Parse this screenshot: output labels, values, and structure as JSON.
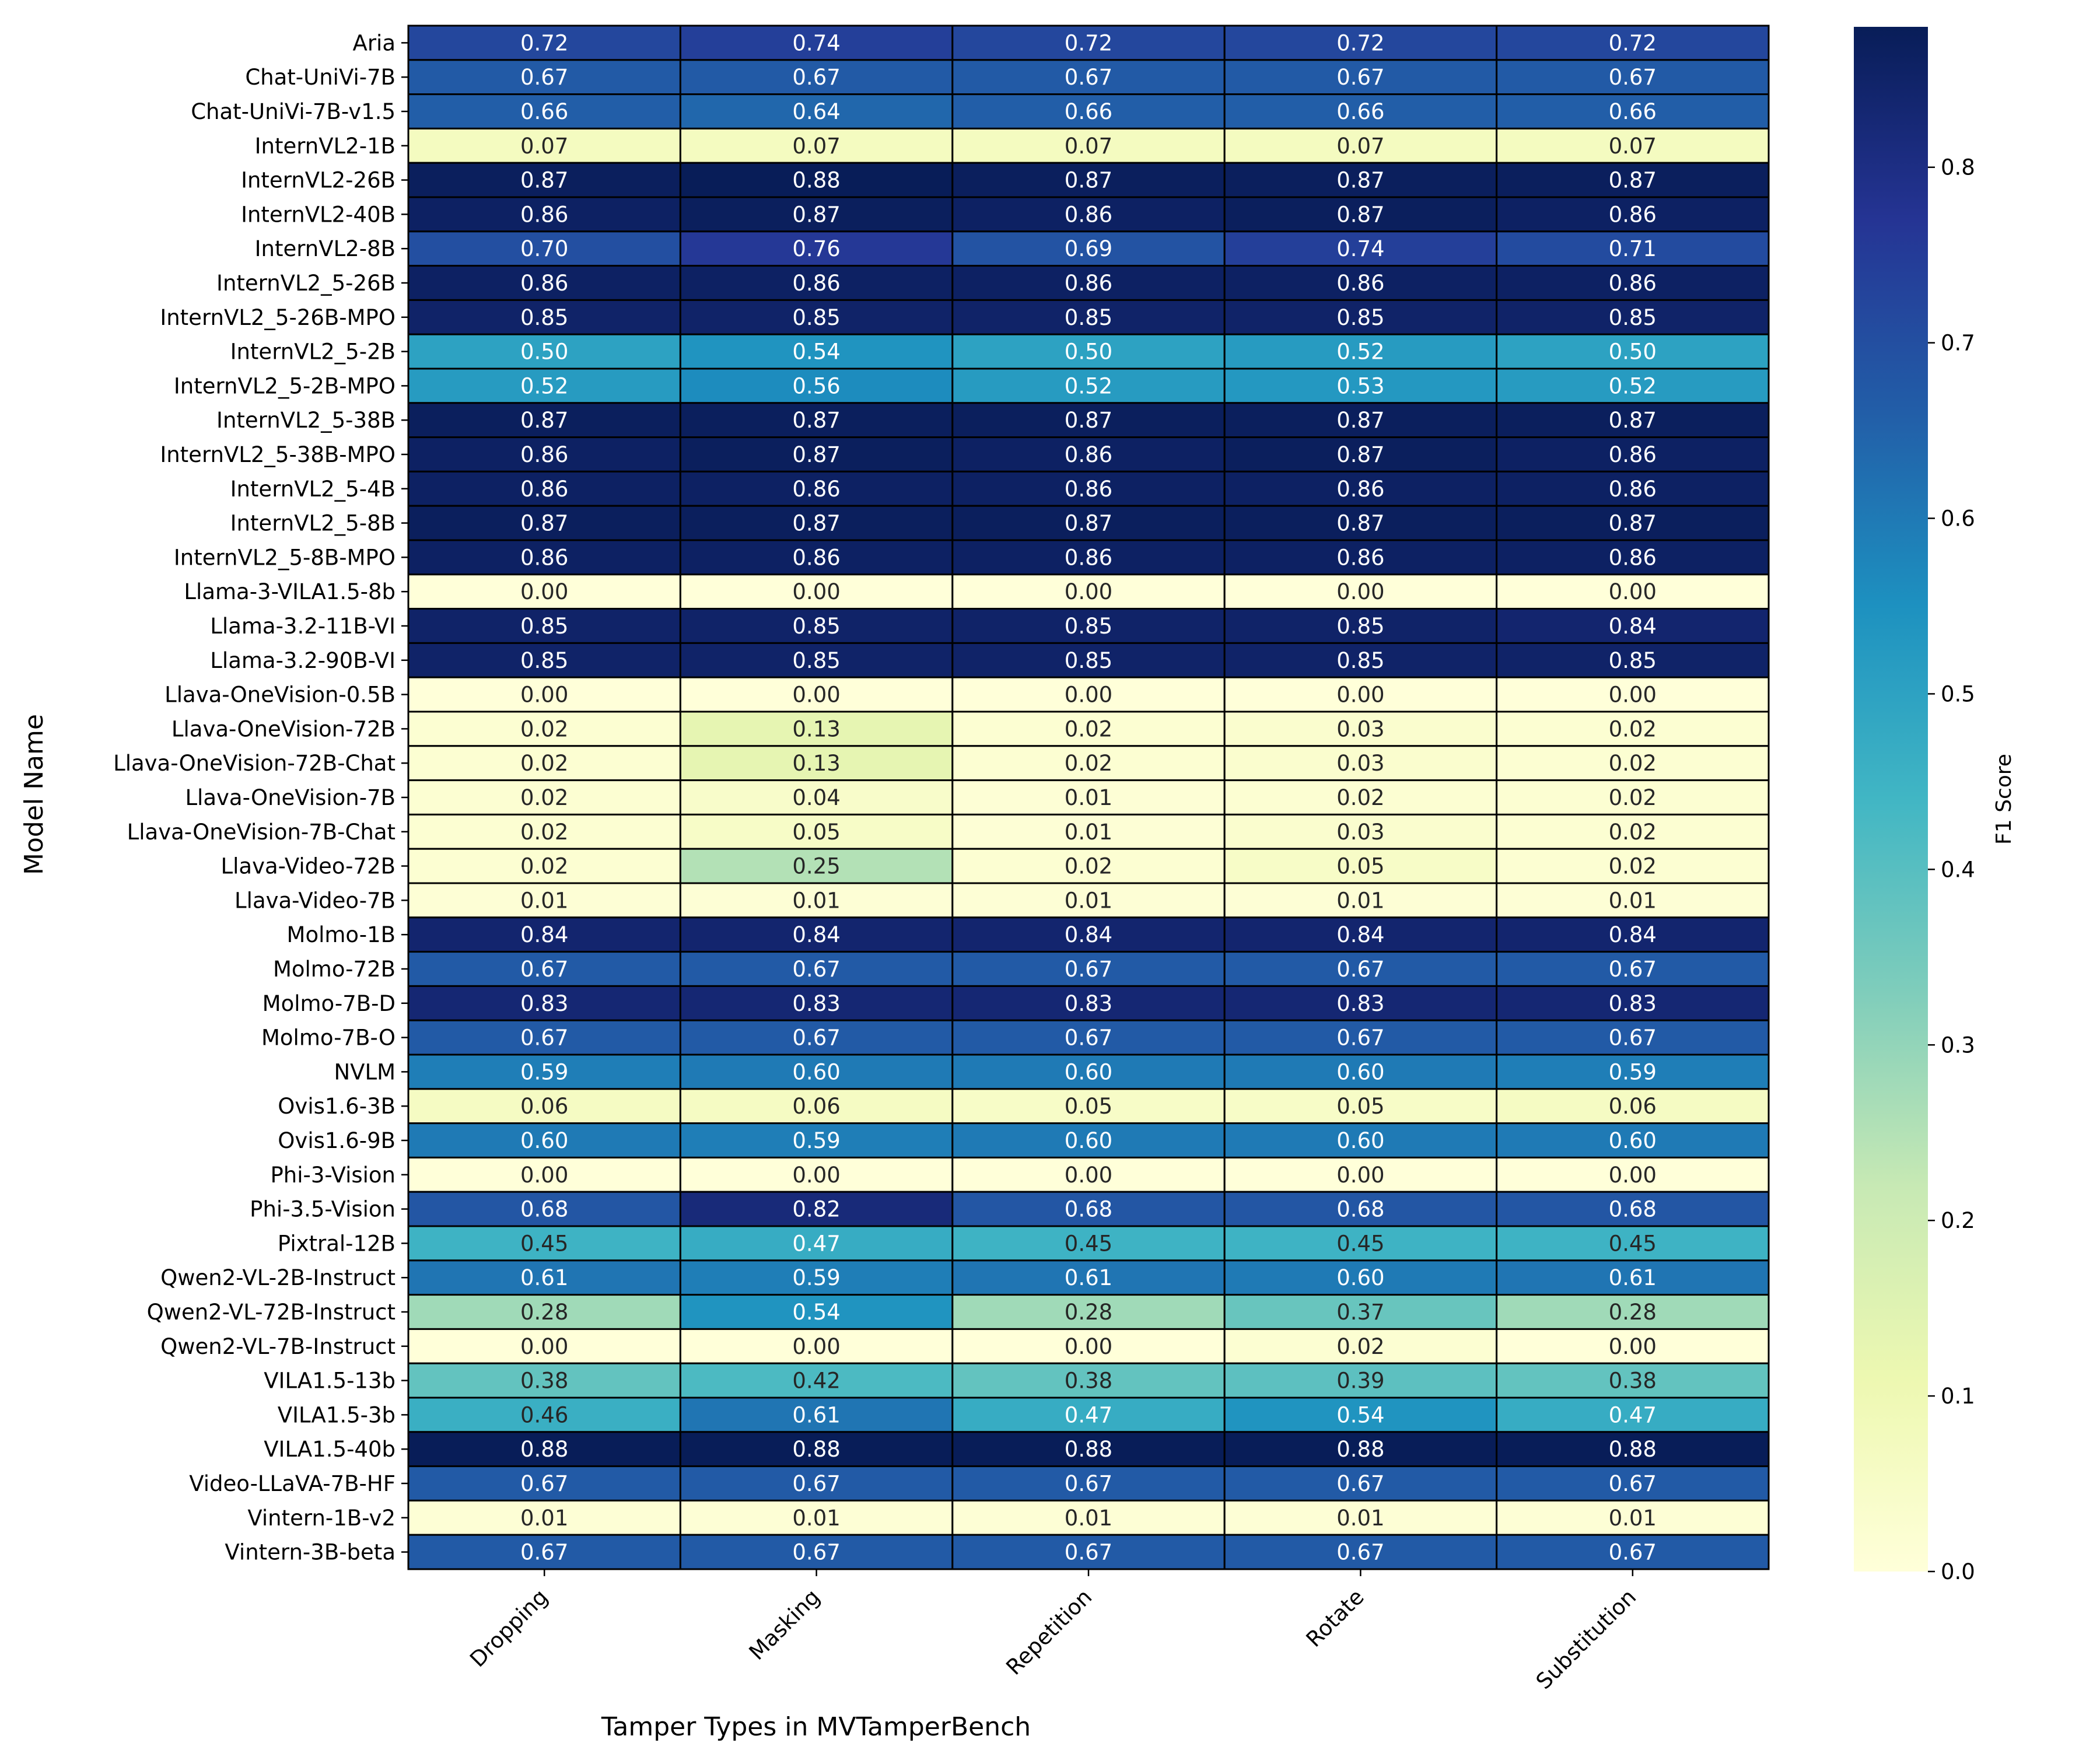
{
  "chart_data": {
    "type": "heatmap",
    "xlabel": "Tamper Types in MVTamperBench",
    "ylabel": "Model Name",
    "colorbar_label": "F1 Score",
    "colorbar_ticks": [
      0.0,
      0.1,
      0.2,
      0.3,
      0.4,
      0.5,
      0.6,
      0.7,
      0.8
    ],
    "colorbar_tick_labels": [
      "0.0",
      "0.1",
      "0.2",
      "0.3",
      "0.4",
      "0.5",
      "0.6",
      "0.7",
      "0.8"
    ],
    "vmin": 0.0,
    "vmax": 0.88,
    "colormap": "YlGnBu",
    "colormap_stops": [
      "#ffffd9",
      "#edf8b1",
      "#c7e9b4",
      "#7fcdbb",
      "#41b6c4",
      "#1d91c0",
      "#225ea8",
      "#253494",
      "#081d58"
    ],
    "columns": [
      "Dropping",
      "Masking",
      "Repetition",
      "Rotate",
      "Substitution"
    ],
    "rows": [
      "Aria",
      "Chat-UniVi-7B",
      "Chat-UniVi-7B-v1.5",
      "InternVL2-1B",
      "InternVL2-26B",
      "InternVL2-40B",
      "InternVL2-8B",
      "InternVL2_5-26B",
      "InternVL2_5-26B-MPO",
      "InternVL2_5-2B",
      "InternVL2_5-2B-MPO",
      "InternVL2_5-38B",
      "InternVL2_5-38B-MPO",
      "InternVL2_5-4B",
      "InternVL2_5-8B",
      "InternVL2_5-8B-MPO",
      "Llama-3-VILA1.5-8b",
      "Llama-3.2-11B-VI",
      "Llama-3.2-90B-VI",
      "Llava-OneVision-0.5B",
      "Llava-OneVision-72B",
      "Llava-OneVision-72B-Chat",
      "Llava-OneVision-7B",
      "Llava-OneVision-7B-Chat",
      "Llava-Video-72B",
      "Llava-Video-7B",
      "Molmo-1B",
      "Molmo-72B",
      "Molmo-7B-D",
      "Molmo-7B-O",
      "NVLM",
      "Ovis1.6-3B",
      "Ovis1.6-9B",
      "Phi-3-Vision",
      "Phi-3.5-Vision",
      "Pixtral-12B",
      "Qwen2-VL-2B-Instruct",
      "Qwen2-VL-72B-Instruct",
      "Qwen2-VL-7B-Instruct",
      "VILA1.5-13b",
      "VILA1.5-3b",
      "VILA1.5-40b",
      "Video-LLaVA-7B-HF",
      "Vintern-1B-v2",
      "Vintern-3B-beta"
    ],
    "values": [
      [
        0.72,
        0.74,
        0.72,
        0.72,
        0.72
      ],
      [
        0.67,
        0.67,
        0.67,
        0.67,
        0.67
      ],
      [
        0.66,
        0.64,
        0.66,
        0.66,
        0.66
      ],
      [
        0.07,
        0.07,
        0.07,
        0.07,
        0.07
      ],
      [
        0.87,
        0.88,
        0.87,
        0.87,
        0.87
      ],
      [
        0.86,
        0.87,
        0.86,
        0.87,
        0.86
      ],
      [
        0.7,
        0.76,
        0.69,
        0.74,
        0.71
      ],
      [
        0.86,
        0.86,
        0.86,
        0.86,
        0.86
      ],
      [
        0.85,
        0.85,
        0.85,
        0.85,
        0.85
      ],
      [
        0.5,
        0.54,
        0.5,
        0.52,
        0.5
      ],
      [
        0.52,
        0.56,
        0.52,
        0.53,
        0.52
      ],
      [
        0.87,
        0.87,
        0.87,
        0.87,
        0.87
      ],
      [
        0.86,
        0.87,
        0.86,
        0.87,
        0.86
      ],
      [
        0.86,
        0.86,
        0.86,
        0.86,
        0.86
      ],
      [
        0.87,
        0.87,
        0.87,
        0.87,
        0.87
      ],
      [
        0.86,
        0.86,
        0.86,
        0.86,
        0.86
      ],
      [
        0.0,
        0.0,
        0.0,
        0.0,
        0.0
      ],
      [
        0.85,
        0.85,
        0.85,
        0.85,
        0.84
      ],
      [
        0.85,
        0.85,
        0.85,
        0.85,
        0.85
      ],
      [
        0.0,
        0.0,
        0.0,
        0.0,
        0.0
      ],
      [
        0.02,
        0.13,
        0.02,
        0.03,
        0.02
      ],
      [
        0.02,
        0.13,
        0.02,
        0.03,
        0.02
      ],
      [
        0.02,
        0.04,
        0.01,
        0.02,
        0.02
      ],
      [
        0.02,
        0.05,
        0.01,
        0.03,
        0.02
      ],
      [
        0.02,
        0.25,
        0.02,
        0.05,
        0.02
      ],
      [
        0.01,
        0.01,
        0.01,
        0.01,
        0.01
      ],
      [
        0.84,
        0.84,
        0.84,
        0.84,
        0.84
      ],
      [
        0.67,
        0.67,
        0.67,
        0.67,
        0.67
      ],
      [
        0.83,
        0.83,
        0.83,
        0.83,
        0.83
      ],
      [
        0.67,
        0.67,
        0.67,
        0.67,
        0.67
      ],
      [
        0.59,
        0.6,
        0.6,
        0.6,
        0.59
      ],
      [
        0.06,
        0.06,
        0.05,
        0.05,
        0.06
      ],
      [
        0.6,
        0.59,
        0.6,
        0.6,
        0.6
      ],
      [
        0.0,
        0.0,
        0.0,
        0.0,
        0.0
      ],
      [
        0.68,
        0.82,
        0.68,
        0.68,
        0.68
      ],
      [
        0.45,
        0.47,
        0.45,
        0.45,
        0.45
      ],
      [
        0.61,
        0.59,
        0.61,
        0.6,
        0.61
      ],
      [
        0.28,
        0.54,
        0.28,
        0.37,
        0.28
      ],
      [
        0.0,
        0.0,
        0.0,
        0.02,
        0.0
      ],
      [
        0.38,
        0.42,
        0.38,
        0.39,
        0.38
      ],
      [
        0.46,
        0.61,
        0.47,
        0.54,
        0.47
      ],
      [
        0.88,
        0.88,
        0.88,
        0.88,
        0.88
      ],
      [
        0.67,
        0.67,
        0.67,
        0.67,
        0.67
      ],
      [
        0.01,
        0.01,
        0.01,
        0.01,
        0.01
      ],
      [
        0.67,
        0.67,
        0.67,
        0.67,
        0.67
      ]
    ]
  }
}
